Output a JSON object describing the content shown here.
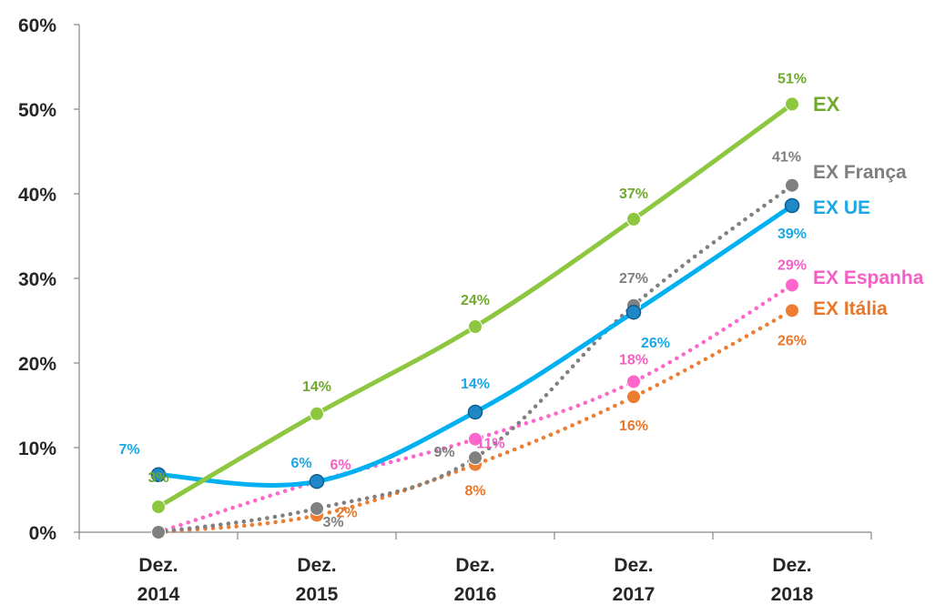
{
  "chart_data": {
    "type": "line",
    "categories": [
      [
        "Dez.",
        "2014"
      ],
      [
        "Dez.",
        "2015"
      ],
      [
        "Dez.",
        "2016"
      ],
      [
        "Dez.",
        "2017"
      ],
      [
        "Dez.",
        "2018"
      ]
    ],
    "ylim": [
      0,
      60
    ],
    "yticks": [
      0,
      10,
      20,
      30,
      40,
      50,
      60
    ],
    "ytick_labels": [
      "0%",
      "10%",
      "20%",
      "30%",
      "40%",
      "50%",
      "60%"
    ],
    "grid": false,
    "legend": "series labels at right end of lines",
    "series": [
      {
        "name": "EX",
        "color": "#8DC63F",
        "label_color": "#6FA92E",
        "style": "solid",
        "values": [
          3,
          14,
          24.3,
          37,
          50.6
        ],
        "labels": [
          "3%",
          "14%",
          "24%",
          "37%",
          "51%"
        ]
      },
      {
        "name": "EX França",
        "color": "#808080",
        "label_color": "#7F7F7F",
        "style": "dotted",
        "values": [
          0,
          2.8,
          8.8,
          26.8,
          41
        ],
        "labels": [
          "",
          "3%",
          "9%",
          "27%",
          "41%"
        ]
      },
      {
        "name": "EX UE",
        "color": "#00B0F0",
        "label_color": "#1AA7E6",
        "style": "solid",
        "values": [
          6.8,
          6,
          14.2,
          26,
          38.6
        ],
        "labels": [
          "7%",
          "6%",
          "14%",
          "26%",
          "39%"
        ]
      },
      {
        "name": "EX Espanha",
        "color": "#FF66CC",
        "label_color": "#F35FC4",
        "style": "dotted",
        "values": [
          0,
          6,
          11,
          17.8,
          29.2
        ],
        "labels": [
          "",
          "6%",
          "11%",
          "18%",
          "29%"
        ]
      },
      {
        "name": "EX Itália",
        "color": "#ED7D31",
        "label_color": "#E9772A",
        "style": "dotted",
        "values": [
          0,
          2,
          8,
          16,
          26.2
        ],
        "labels": [
          "",
          "2%",
          "8%",
          "16%",
          "26%"
        ]
      }
    ]
  }
}
